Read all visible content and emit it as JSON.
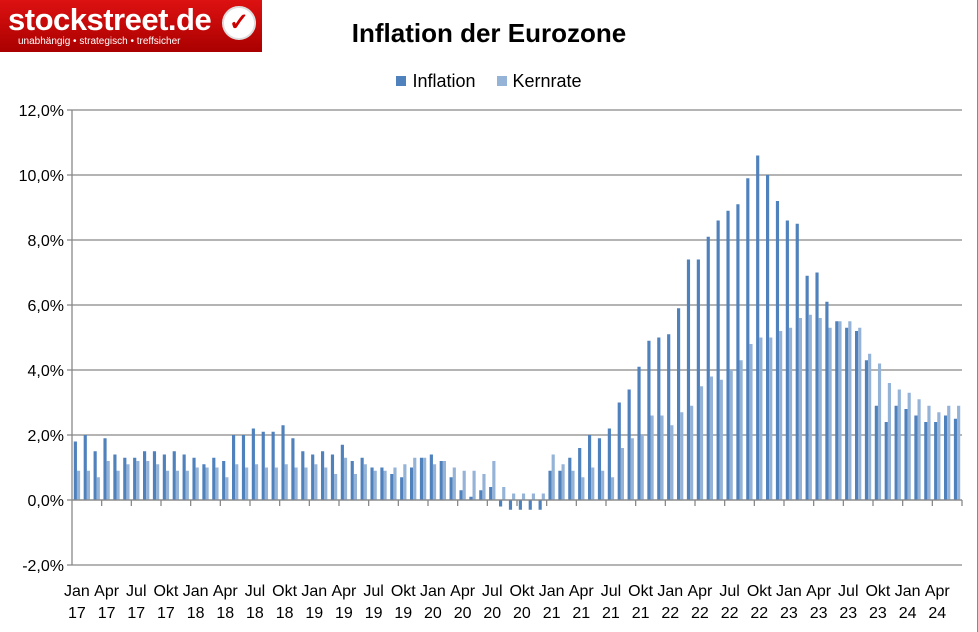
{
  "logo": {
    "brand": "stockstreet.de",
    "tagline": "unabhängig • strategisch • treffsicher",
    "icon": "checkmark-icon"
  },
  "chart_data": {
    "type": "bar",
    "title": "Inflation der Eurozone",
    "legend_position": "top",
    "grid": true,
    "ylim": [
      -2,
      12
    ],
    "yticks": [
      "-2,0%",
      "0,0%",
      "2,0%",
      "4,0%",
      "6,0%",
      "8,0%",
      "10,0%",
      "12,0%"
    ],
    "xtick_labels": [
      [
        "Jan",
        "17"
      ],
      [
        "Apr",
        "17"
      ],
      [
        "Jul",
        "17"
      ],
      [
        "Okt",
        "17"
      ],
      [
        "Jan",
        "18"
      ],
      [
        "Apr",
        "18"
      ],
      [
        "Jul",
        "18"
      ],
      [
        "Okt",
        "18"
      ],
      [
        "Jan",
        "19"
      ],
      [
        "Apr",
        "19"
      ],
      [
        "Jul",
        "19"
      ],
      [
        "Okt",
        "19"
      ],
      [
        "Jan",
        "20"
      ],
      [
        "Apr",
        "20"
      ],
      [
        "Jul",
        "20"
      ],
      [
        "Okt",
        "20"
      ],
      [
        "Jan",
        "21"
      ],
      [
        "Apr",
        "21"
      ],
      [
        "Jul",
        "21"
      ],
      [
        "Okt",
        "21"
      ],
      [
        "Jan",
        "22"
      ],
      [
        "Apr",
        "22"
      ],
      [
        "Jul",
        "22"
      ],
      [
        "Okt",
        "22"
      ],
      [
        "Jan",
        "23"
      ],
      [
        "Apr",
        "23"
      ],
      [
        "Jul",
        "23"
      ],
      [
        "Okt",
        "23"
      ],
      [
        "Jan",
        "24"
      ],
      [
        "Apr",
        "24"
      ]
    ],
    "series": [
      {
        "name": "Inflation",
        "color": "#4F81BD",
        "values": [
          1.8,
          2.0,
          1.5,
          1.9,
          1.4,
          1.3,
          1.3,
          1.5,
          1.5,
          1.4,
          1.5,
          1.4,
          1.3,
          1.1,
          1.3,
          1.2,
          2.0,
          2.0,
          2.2,
          2.1,
          2.1,
          2.3,
          1.9,
          1.5,
          1.4,
          1.5,
          1.4,
          1.7,
          1.2,
          1.3,
          1.0,
          1.0,
          0.8,
          0.7,
          1.0,
          1.3,
          1.4,
          1.2,
          0.7,
          0.3,
          0.1,
          0.3,
          0.4,
          -0.2,
          -0.3,
          -0.3,
          -0.3,
          -0.3,
          0.9,
          0.9,
          1.3,
          1.6,
          2.0,
          1.9,
          2.2,
          3.0,
          3.4,
          4.1,
          4.9,
          5.0,
          5.1,
          5.9,
          7.4,
          7.4,
          8.1,
          8.6,
          8.9,
          9.1,
          9.9,
          10.6,
          10.0,
          9.2,
          8.6,
          8.5,
          6.9,
          7.0,
          6.1,
          5.5,
          5.3,
          5.2,
          4.3,
          2.9,
          2.4,
          2.9,
          2.8,
          2.6,
          2.4,
          2.4,
          2.6,
          2.5
        ]
      },
      {
        "name": "Kernrate",
        "color": "#95B3D7",
        "values": [
          0.9,
          0.9,
          0.7,
          1.2,
          0.9,
          1.1,
          1.2,
          1.2,
          1.1,
          0.9,
          0.9,
          0.9,
          1.0,
          1.0,
          1.0,
          0.7,
          1.1,
          1.0,
          1.1,
          1.0,
          1.0,
          1.1,
          1.0,
          1.0,
          1.1,
          1.0,
          0.8,
          1.3,
          0.8,
          1.1,
          0.9,
          0.9,
          1.0,
          1.1,
          1.3,
          1.3,
          1.1,
          1.2,
          1.0,
          0.9,
          0.9,
          0.8,
          1.2,
          0.4,
          0.2,
          0.2,
          0.2,
          0.2,
          1.4,
          1.1,
          0.9,
          0.7,
          1.0,
          0.9,
          0.7,
          1.6,
          1.9,
          2.0,
          2.6,
          2.6,
          2.3,
          2.7,
          2.9,
          3.5,
          3.8,
          3.7,
          4.0,
          4.3,
          4.8,
          5.0,
          5.0,
          5.2,
          5.3,
          5.6,
          5.7,
          5.6,
          5.3,
          5.5,
          5.5,
          5.3,
          4.5,
          4.2,
          3.6,
          3.4,
          3.3,
          3.1,
          2.9,
          2.7,
          2.9,
          2.9
        ]
      }
    ]
  }
}
